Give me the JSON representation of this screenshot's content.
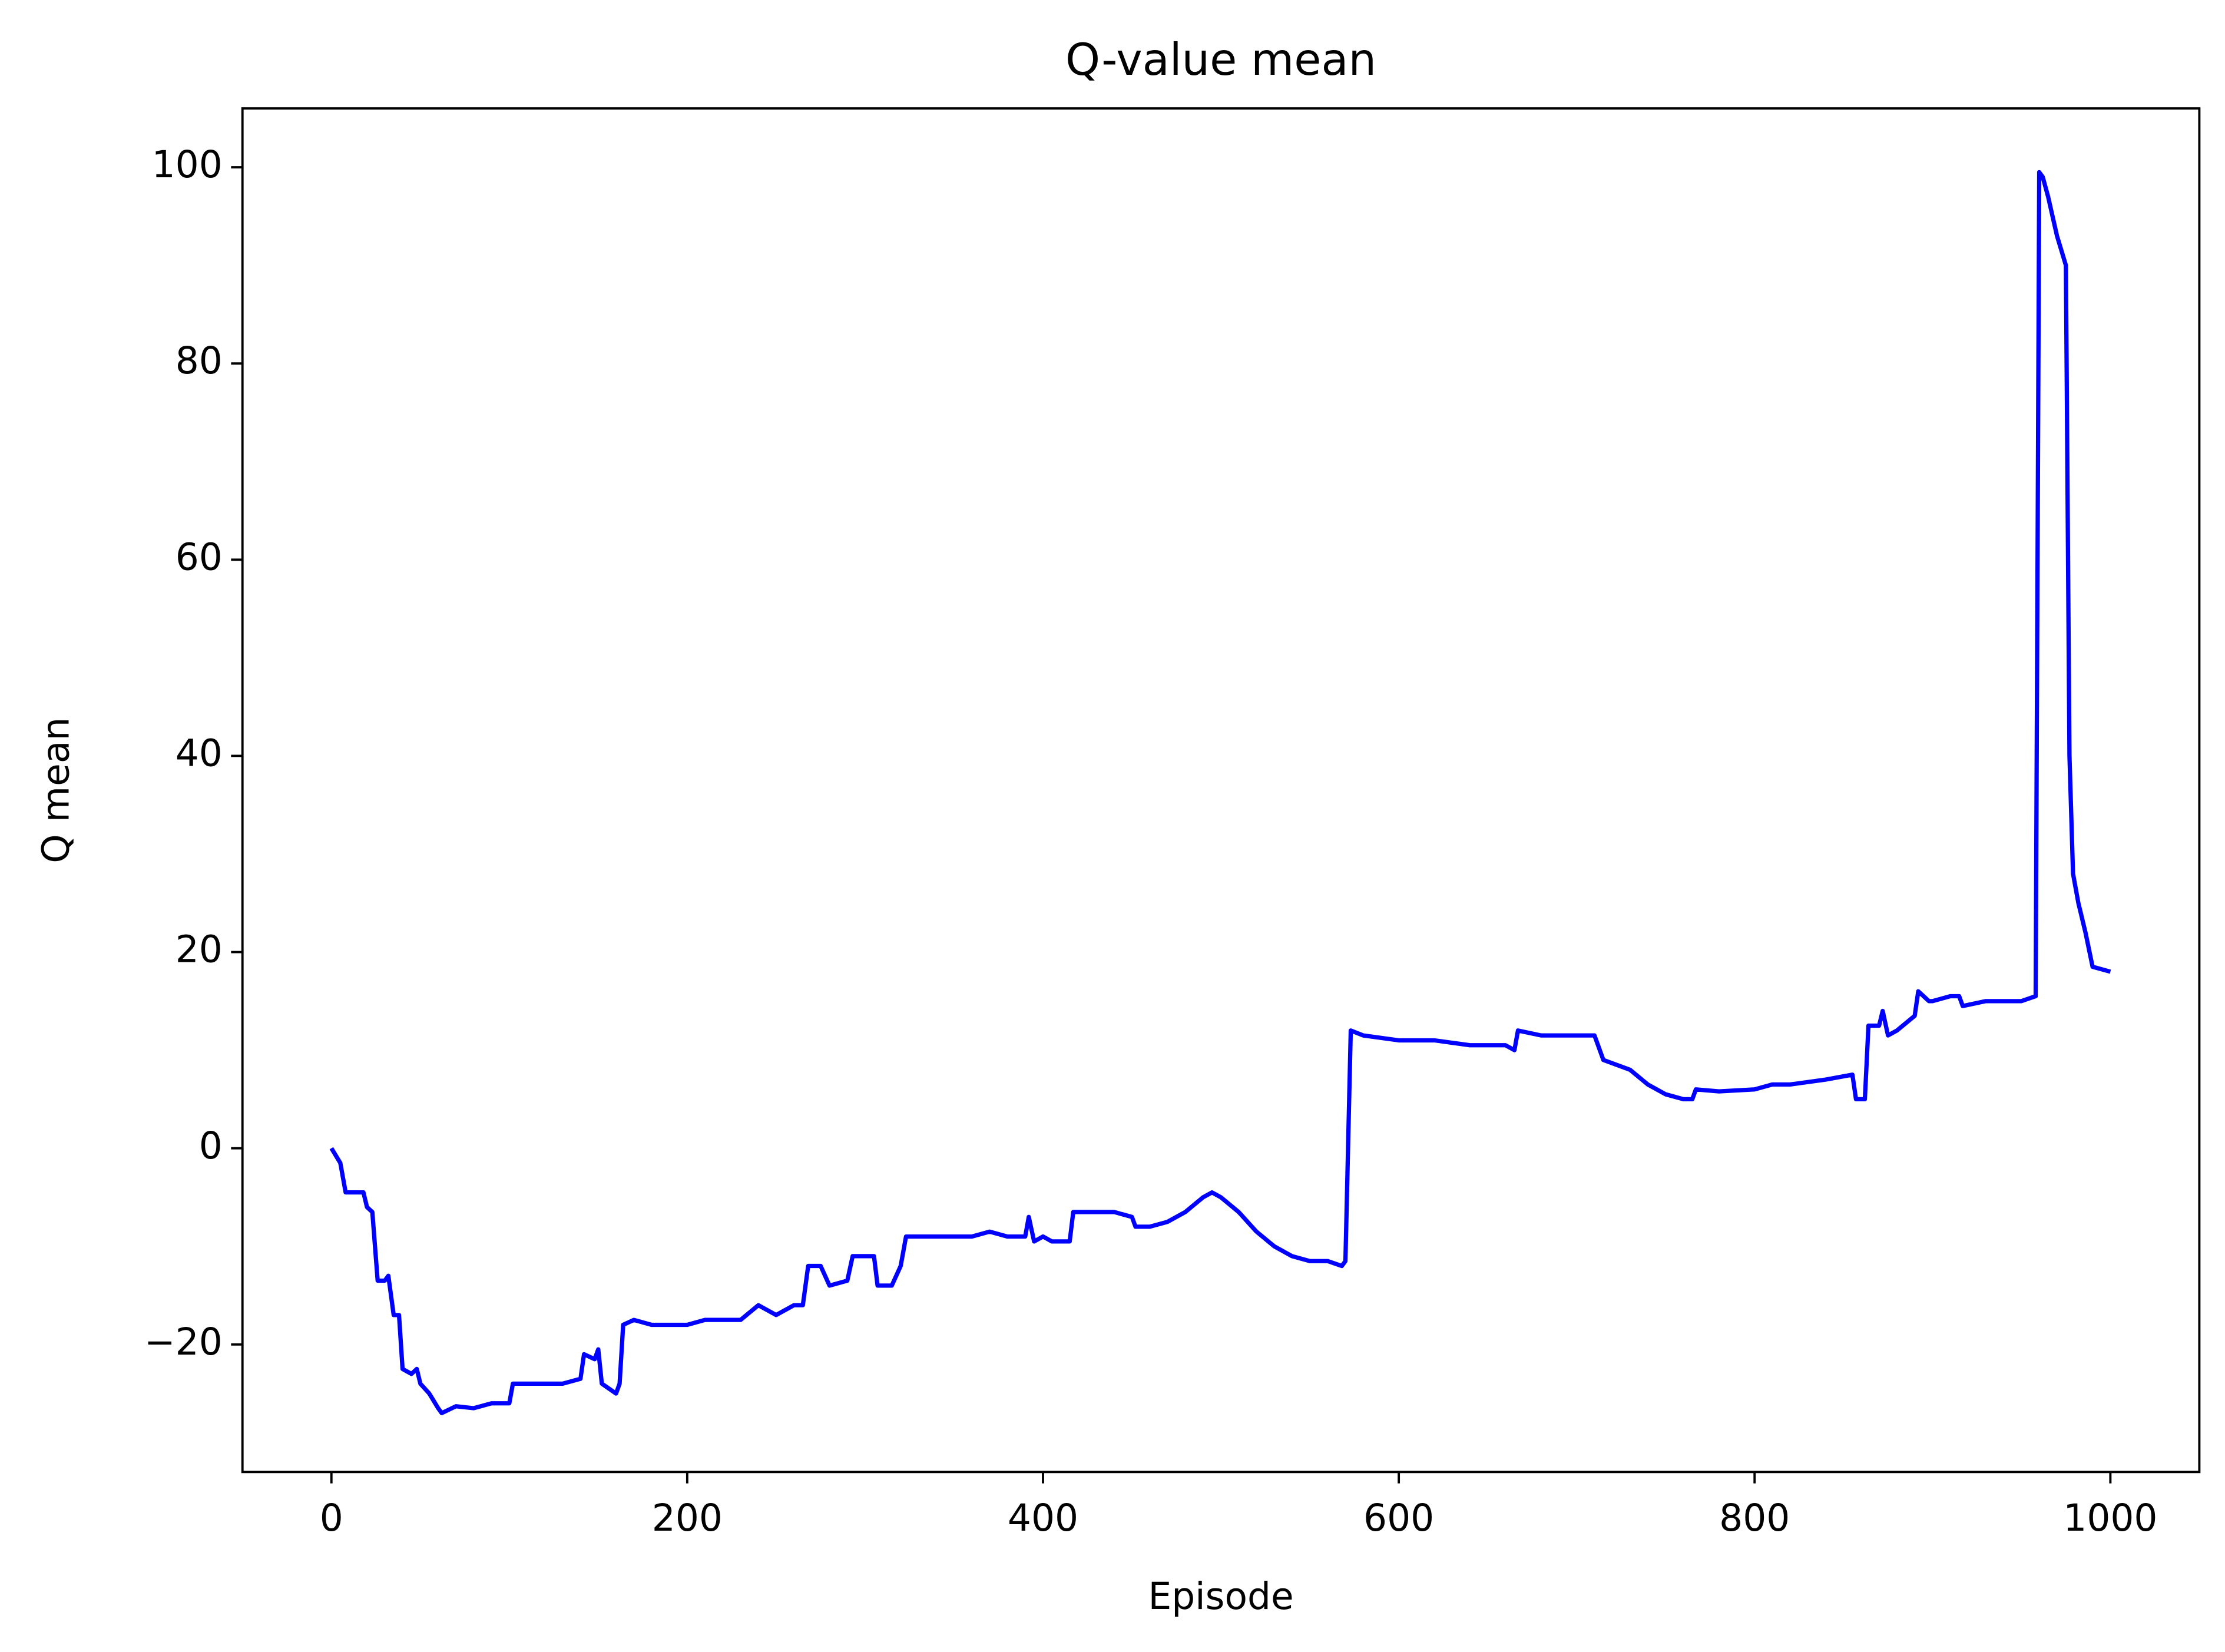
{
  "chart_data": {
    "type": "line",
    "title": "Q-value mean",
    "x_label": "Episode",
    "y_label": "Q mean",
    "xlim": [
      -50,
      1050
    ],
    "ylim": [
      -33,
      106
    ],
    "xticks": [
      0,
      200,
      400,
      600,
      800,
      1000
    ],
    "yticks": [
      {
        "value": -20,
        "label": "−20"
      },
      0,
      20,
      40,
      60,
      80,
      100
    ],
    "grid": false,
    "series": [
      {
        "name": "Q mean",
        "color": "#0000ff",
        "x": [
          0,
          5,
          8,
          18,
          20,
          23,
          26,
          30,
          32,
          35,
          38,
          40,
          45,
          48,
          50,
          55,
          60,
          62,
          70,
          80,
          90,
          100,
          102,
          110,
          120,
          130,
          140,
          142,
          148,
          150,
          152,
          160,
          162,
          164,
          170,
          180,
          200,
          210,
          230,
          240,
          250,
          260,
          265,
          268,
          275,
          280,
          290,
          293,
          305,
          307,
          315,
          320,
          323,
          330,
          340,
          350,
          360,
          370,
          380,
          390,
          392,
          395,
          400,
          405,
          415,
          417,
          430,
          440,
          450,
          452,
          460,
          470,
          480,
          490,
          495,
          500,
          510,
          520,
          530,
          540,
          550,
          560,
          568,
          570,
          573,
          580,
          600,
          620,
          640,
          660,
          665,
          667,
          680,
          700,
          710,
          715,
          730,
          740,
          750,
          760,
          765,
          767,
          780,
          800,
          810,
          820,
          840,
          855,
          857,
          862,
          864,
          870,
          872,
          875,
          880,
          890,
          892,
          898,
          900,
          910,
          915,
          917,
          930,
          950,
          958,
          960,
          962,
          965,
          970,
          975,
          977,
          979,
          982,
          986,
          990,
          1000
        ],
        "values": [
          0,
          -1.5,
          -4.5,
          -4.5,
          -6,
          -6.5,
          -13.5,
          -13.5,
          -13,
          -17,
          -17,
          -22.5,
          -23,
          -22.5,
          -24,
          -25,
          -26.5,
          -27,
          -26.3,
          -26.5,
          -26,
          -26,
          -24,
          -24,
          -24,
          -24,
          -23.5,
          -21,
          -21.5,
          -20.5,
          -24,
          -25,
          -24,
          -18,
          -17.5,
          -18,
          -18,
          -17.5,
          -17.5,
          -16,
          -17,
          -16,
          -16,
          -12,
          -12,
          -14,
          -13.5,
          -11,
          -11,
          -14,
          -14,
          -12,
          -9,
          -9,
          -9,
          -9,
          -9,
          -8.5,
          -9,
          -9,
          -7,
          -9.5,
          -9,
          -9.5,
          -9.5,
          -6.5,
          -6.5,
          -6.5,
          -7,
          -8,
          -8,
          -7.5,
          -6.5,
          -5,
          -4.5,
          -5,
          -6.5,
          -8.5,
          -10,
          -11,
          -11.5,
          -11.5,
          -12,
          -11.5,
          12,
          11.5,
          11,
          11,
          10.5,
          10.5,
          10,
          12,
          11.5,
          11.5,
          11.5,
          9,
          8,
          6.5,
          5.5,
          5,
          5,
          6,
          5.8,
          6,
          6.5,
          6.5,
          7,
          7.5,
          5,
          5,
          12.5,
          12.5,
          14,
          11.5,
          12,
          13.5,
          16,
          15,
          15,
          15.5,
          15.5,
          14.5,
          15,
          15,
          15.5,
          99.5,
          99,
          97,
          93,
          90,
          40,
          28,
          25,
          22,
          18.5,
          18
        ]
      }
    ]
  }
}
